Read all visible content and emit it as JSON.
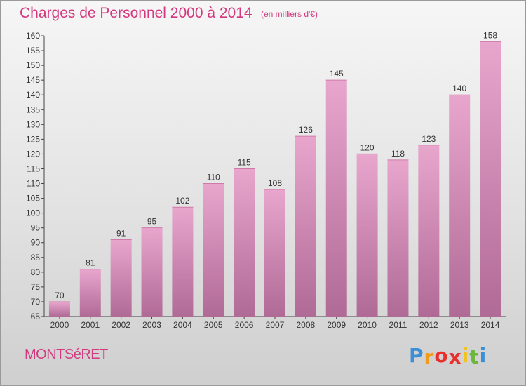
{
  "chart_data": {
    "type": "bar",
    "title": "Charges de Personnel 2000 à 2014",
    "subtitle": "(en milliers d'€)",
    "categories": [
      "2000",
      "2001",
      "2002",
      "2003",
      "2004",
      "2005",
      "2006",
      "2007",
      "2008",
      "2009",
      "2010",
      "2011",
      "2012",
      "2013",
      "2014"
    ],
    "values": [
      70,
      81,
      91,
      95,
      102,
      110,
      115,
      108,
      126,
      145,
      120,
      118,
      123,
      140,
      158
    ],
    "ylim": [
      65,
      160
    ],
    "yticks": [
      65,
      70,
      75,
      80,
      85,
      90,
      95,
      100,
      105,
      110,
      115,
      120,
      125,
      130,
      135,
      140,
      145,
      150,
      155,
      160
    ],
    "grid": false,
    "bar_color": "#c96a9e"
  },
  "footer": {
    "commune": "MONTSéRET",
    "logo_letters": [
      "P",
      "r",
      "o",
      "x",
      "i",
      "t",
      "i"
    ],
    "logo_colors": [
      "#3a8fd6",
      "#f29a1a",
      "#e8302c",
      "#e8302c",
      "#f2c31a",
      "#6ab73c",
      "#3a8fd6"
    ]
  }
}
